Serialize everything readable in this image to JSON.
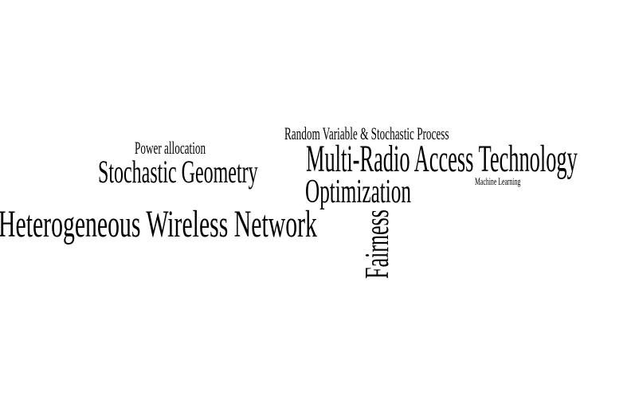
{
  "word_cloud": {
    "text_color": "#000000",
    "background_color": "#ffffff",
    "words": {
      "heterogeneous": "Heterogeneous Wireless Network",
      "multi_rat": "Multi-Radio Access Technology",
      "stochastic_geometry": "Stochastic Geometry",
      "optimization": "Optimization",
      "random_variable": "Random Variable & Stochastic Process",
      "power_allocation": "Power allocation",
      "machine_learning": "Machine Learning",
      "fairness": "Fairness"
    }
  }
}
